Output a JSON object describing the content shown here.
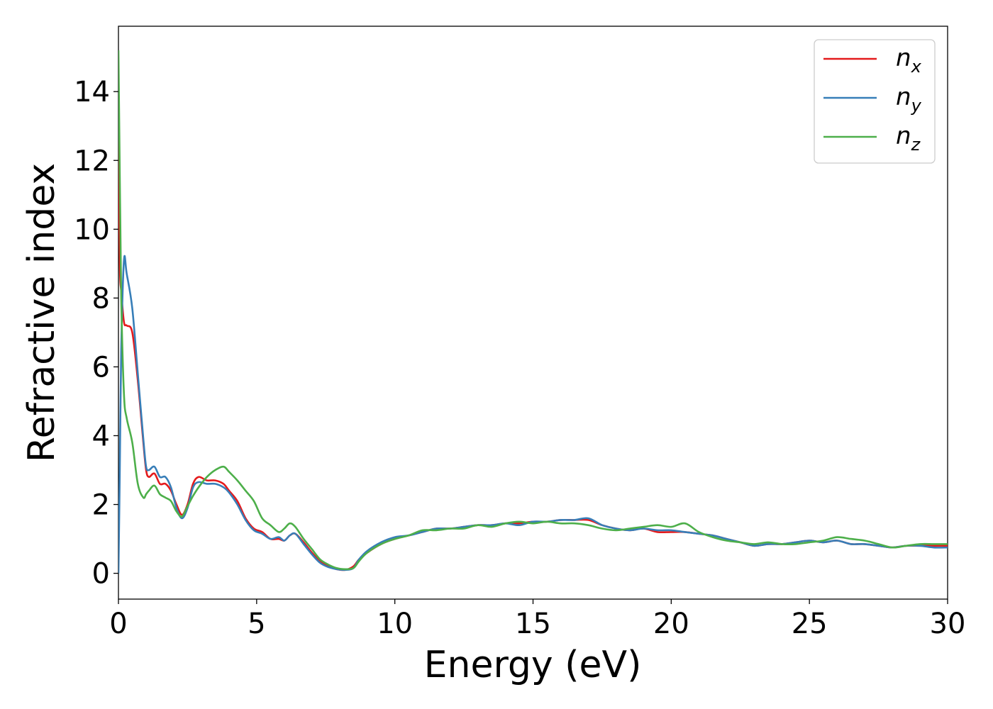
{
  "chart_data": {
    "type": "line",
    "xlabel": "Energy (eV)",
    "ylabel": "Refractive index",
    "xlim": [
      0,
      30
    ],
    "ylim": [
      -0.75,
      15.9
    ],
    "xticks": [
      "0",
      "5",
      "10",
      "15",
      "20",
      "25",
      "30"
    ],
    "yticks": [
      "0",
      "2",
      "4",
      "6",
      "8",
      "10",
      "12",
      "14"
    ],
    "grid": false,
    "legend_position": "top-right",
    "series": [
      {
        "name": "n",
        "subscript": "x",
        "color": "#e41a1c",
        "x": [
          0,
          0.05,
          0.1,
          0.2,
          0.3,
          0.5,
          0.7,
          0.9,
          1.0,
          1.1,
          1.3,
          1.5,
          1.7,
          1.9,
          2.1,
          2.3,
          2.5,
          2.7,
          2.9,
          3.2,
          3.5,
          3.8,
          4.0,
          4.3,
          4.6,
          4.9,
          5.2,
          5.5,
          5.8,
          6.0,
          6.2,
          6.4,
          6.7,
          7.0,
          7.3,
          7.6,
          7.9,
          8.2,
          8.5,
          8.7,
          9.0,
          9.5,
          10.0,
          10.5,
          11.0,
          11.5,
          12.0,
          12.5,
          13.0,
          13.5,
          14.0,
          14.5,
          15.0,
          15.5,
          16.0,
          16.5,
          17.0,
          17.5,
          18.0,
          18.5,
          19.0,
          19.5,
          20.0,
          20.5,
          21.0,
          21.5,
          22.0,
          22.5,
          23.0,
          23.5,
          24.0,
          24.5,
          25.0,
          25.5,
          26.0,
          26.5,
          27.0,
          27.5,
          28.0,
          28.5,
          29.0,
          29.5,
          30.0
        ],
        "y": [
          13.0,
          9.0,
          8.2,
          7.3,
          7.2,
          7.0,
          5.6,
          3.8,
          3.0,
          2.8,
          2.9,
          2.6,
          2.6,
          2.4,
          2.0,
          1.7,
          2.0,
          2.6,
          2.8,
          2.7,
          2.7,
          2.6,
          2.4,
          2.1,
          1.6,
          1.3,
          1.2,
          1.0,
          1.0,
          0.95,
          1.1,
          1.15,
          0.9,
          0.6,
          0.35,
          0.2,
          0.12,
          0.1,
          0.2,
          0.4,
          0.6,
          0.85,
          1.0,
          1.1,
          1.2,
          1.3,
          1.3,
          1.35,
          1.4,
          1.4,
          1.45,
          1.45,
          1.5,
          1.5,
          1.55,
          1.55,
          1.55,
          1.4,
          1.3,
          1.25,
          1.3,
          1.2,
          1.2,
          1.2,
          1.15,
          1.1,
          1.0,
          0.9,
          0.8,
          0.85,
          0.85,
          0.9,
          0.95,
          0.9,
          0.95,
          0.85,
          0.85,
          0.8,
          0.75,
          0.8,
          0.8,
          0.8,
          0.8
        ]
      },
      {
        "name": "n",
        "subscript": "y",
        "color": "#377eb8",
        "x": [
          0,
          0.05,
          0.1,
          0.2,
          0.3,
          0.5,
          0.7,
          0.9,
          1.0,
          1.1,
          1.3,
          1.5,
          1.7,
          1.9,
          2.1,
          2.3,
          2.5,
          2.7,
          2.9,
          3.2,
          3.5,
          3.8,
          4.0,
          4.3,
          4.6,
          4.9,
          5.2,
          5.5,
          5.8,
          6.0,
          6.2,
          6.4,
          6.7,
          7.0,
          7.3,
          7.6,
          7.9,
          8.2,
          8.5,
          8.7,
          9.0,
          9.5,
          10.0,
          10.5,
          11.0,
          11.5,
          12.0,
          12.5,
          13.0,
          13.5,
          14.0,
          14.5,
          15.0,
          15.5,
          16.0,
          16.5,
          17.0,
          17.5,
          18.0,
          18.5,
          19.0,
          19.5,
          20.0,
          20.5,
          21.0,
          21.5,
          22.0,
          22.5,
          23.0,
          23.5,
          24.0,
          24.5,
          25.0,
          25.5,
          26.0,
          26.5,
          27.0,
          27.5,
          28.0,
          28.5,
          29.0,
          29.5,
          30.0
        ],
        "y": [
          0.0,
          3.0,
          6.5,
          9.1,
          8.7,
          7.7,
          5.8,
          3.9,
          3.1,
          3.0,
          3.1,
          2.8,
          2.8,
          2.5,
          1.9,
          1.6,
          1.9,
          2.5,
          2.65,
          2.6,
          2.6,
          2.5,
          2.35,
          2.0,
          1.55,
          1.25,
          1.15,
          1.0,
          1.05,
          0.95,
          1.1,
          1.15,
          0.85,
          0.55,
          0.3,
          0.18,
          0.12,
          0.1,
          0.15,
          0.4,
          0.65,
          0.9,
          1.05,
          1.1,
          1.2,
          1.3,
          1.3,
          1.35,
          1.4,
          1.4,
          1.45,
          1.4,
          1.5,
          1.5,
          1.55,
          1.55,
          1.6,
          1.4,
          1.3,
          1.25,
          1.3,
          1.25,
          1.25,
          1.2,
          1.15,
          1.1,
          1.0,
          0.9,
          0.8,
          0.85,
          0.85,
          0.9,
          0.95,
          0.9,
          0.95,
          0.85,
          0.85,
          0.8,
          0.75,
          0.8,
          0.8,
          0.75,
          0.75
        ]
      },
      {
        "name": "n",
        "subscript": "z",
        "color": "#4daf4a",
        "x": [
          0,
          0.05,
          0.1,
          0.2,
          0.3,
          0.5,
          0.7,
          0.9,
          1.0,
          1.1,
          1.3,
          1.5,
          1.7,
          1.9,
          2.1,
          2.3,
          2.5,
          2.7,
          2.9,
          3.2,
          3.5,
          3.8,
          4.0,
          4.3,
          4.6,
          4.9,
          5.2,
          5.5,
          5.8,
          6.0,
          6.2,
          6.4,
          6.7,
          7.0,
          7.3,
          7.6,
          7.9,
          8.2,
          8.5,
          8.7,
          9.0,
          9.5,
          10.0,
          10.5,
          11.0,
          11.5,
          12.0,
          12.5,
          13.0,
          13.5,
          14.0,
          14.5,
          15.0,
          15.5,
          16.0,
          16.5,
          17.0,
          17.5,
          18.0,
          18.5,
          19.0,
          19.5,
          20.0,
          20.5,
          21.0,
          21.5,
          22.0,
          22.5,
          23.0,
          23.5,
          24.0,
          24.5,
          25.0,
          25.5,
          26.0,
          26.5,
          27.0,
          27.5,
          28.0,
          28.5,
          29.0,
          29.5,
          30.0
        ],
        "y": [
          15.2,
          11.5,
          8.0,
          5.2,
          4.5,
          3.8,
          2.6,
          2.2,
          2.3,
          2.4,
          2.55,
          2.3,
          2.2,
          2.1,
          1.8,
          1.65,
          1.95,
          2.25,
          2.5,
          2.8,
          3.0,
          3.1,
          2.95,
          2.7,
          2.4,
          2.1,
          1.6,
          1.4,
          1.2,
          1.3,
          1.45,
          1.35,
          1.0,
          0.7,
          0.4,
          0.25,
          0.15,
          0.12,
          0.15,
          0.35,
          0.6,
          0.85,
          1.0,
          1.1,
          1.25,
          1.25,
          1.3,
          1.3,
          1.4,
          1.35,
          1.45,
          1.5,
          1.45,
          1.5,
          1.45,
          1.45,
          1.4,
          1.3,
          1.25,
          1.3,
          1.35,
          1.4,
          1.35,
          1.45,
          1.2,
          1.05,
          0.95,
          0.9,
          0.85,
          0.9,
          0.85,
          0.85,
          0.9,
          0.95,
          1.05,
          1.0,
          0.95,
          0.85,
          0.75,
          0.8,
          0.85,
          0.85,
          0.85
        ]
      }
    ]
  }
}
